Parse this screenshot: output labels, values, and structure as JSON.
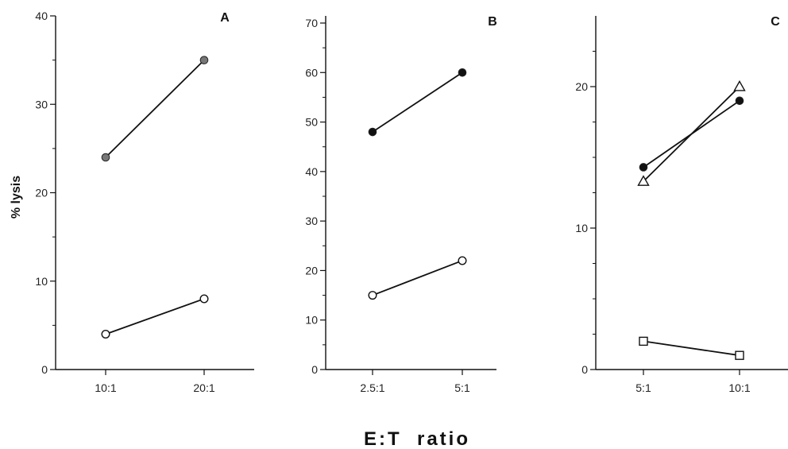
{
  "figure": {
    "ylabel": "% lysis",
    "xlabel": "E:T  ratio"
  },
  "chart_data": [
    {
      "type": "line",
      "panel": "A",
      "categories": [
        "10:1",
        "20:1"
      ],
      "ylim": [
        0,
        40
      ],
      "yticks": [
        "0",
        "10",
        "20",
        "30",
        "40"
      ],
      "series": [
        {
          "marker": "filled-circle",
          "color": "#777777",
          "values": [
            24,
            35
          ]
        },
        {
          "marker": "open-circle",
          "values": [
            4,
            8
          ]
        }
      ]
    },
    {
      "type": "line",
      "panel": "B",
      "categories": [
        "2.5:1",
        "5:1"
      ],
      "ylim": [
        0,
        70
      ],
      "yticks": [
        "0",
        "10",
        "20",
        "30",
        "40",
        "50",
        "60",
        "70"
      ],
      "series": [
        {
          "marker": "filled-circle",
          "color": "#111111",
          "values": [
            48,
            60
          ]
        },
        {
          "marker": "open-circle",
          "values": [
            15,
            22
          ]
        }
      ]
    },
    {
      "type": "line",
      "panel": "C",
      "categories": [
        "5:1",
        "10:1"
      ],
      "ylim": [
        0,
        25
      ],
      "yticks": [
        "0",
        "10",
        "20"
      ],
      "series": [
        {
          "marker": "filled-circle",
          "color": "#111111",
          "values": [
            14.3,
            19
          ]
        },
        {
          "marker": "open-triangle",
          "values": [
            13.3,
            20
          ]
        },
        {
          "marker": "open-square",
          "values": [
            2,
            1
          ]
        }
      ]
    }
  ]
}
